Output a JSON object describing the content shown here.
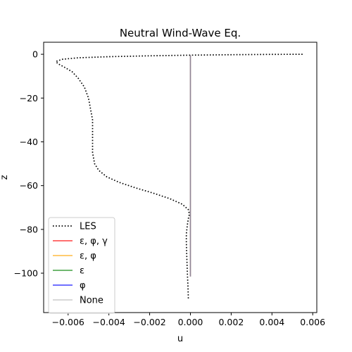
{
  "chart_data": {
    "type": "line",
    "title": "Neutral Wind-Wave Eq.",
    "xlabel": "u",
    "ylabel": "z",
    "xlim": [
      -0.0072,
      0.0062
    ],
    "ylim": [
      -118,
      5.5
    ],
    "xticks": [
      -0.006,
      -0.004,
      -0.002,
      0.0,
      0.002,
      0.004,
      0.006
    ],
    "xtick_labels": [
      "−0.006",
      "−0.004",
      "−0.002",
      "0.000",
      "0.002",
      "0.004",
      "0.006"
    ],
    "yticks": [
      0,
      -20,
      -40,
      -60,
      -80,
      -100
    ],
    "ytick_labels": [
      "0",
      "−20",
      "−40",
      "−60",
      "−80",
      "−100"
    ],
    "grid": false,
    "legend_position": "lower-left",
    "series": [
      {
        "name": "LES",
        "color": "#000000",
        "style": "dotted",
        "points": [
          [
            0.0055,
            0
          ],
          [
            0.004,
            -0.05
          ],
          [
            0.002,
            -0.2
          ],
          [
            0.0,
            -0.4
          ],
          [
            -0.002,
            -0.7
          ],
          [
            -0.004,
            -1.1
          ],
          [
            -0.0055,
            -1.6
          ],
          [
            -0.0063,
            -2.3
          ],
          [
            -0.0066,
            -3.3
          ],
          [
            -0.0065,
            -4.3
          ],
          [
            -0.0062,
            -5.8
          ],
          [
            -0.0058,
            -8
          ],
          [
            -0.0055,
            -11
          ],
          [
            -0.0052,
            -15
          ],
          [
            -0.005,
            -20
          ],
          [
            -0.0049,
            -25
          ],
          [
            -0.0048,
            -30
          ],
          [
            -0.0048,
            -35
          ],
          [
            -0.0048,
            -40
          ],
          [
            -0.0048,
            -45
          ],
          [
            -0.0047,
            -50
          ],
          [
            -0.0045,
            -53
          ],
          [
            -0.0041,
            -56
          ],
          [
            -0.0035,
            -58.5
          ],
          [
            -0.0027,
            -61
          ],
          [
            -0.0018,
            -63.5
          ],
          [
            -0.001,
            -66
          ],
          [
            -0.0004,
            -68.5
          ],
          [
            -0.0001,
            -71
          ],
          [
            -5e-05,
            -73
          ],
          [
            -0.0001,
            -75
          ],
          [
            -0.00015,
            -78
          ],
          [
            -0.0002,
            -82
          ],
          [
            -0.0002,
            -86
          ],
          [
            -0.00018,
            -92
          ],
          [
            -0.00015,
            -100
          ],
          [
            -0.00012,
            -106
          ],
          [
            -0.0001,
            -112
          ]
        ]
      },
      {
        "name": "ε, φ, γ",
        "color": "#ff0000",
        "style": "solid",
        "points": [
          [
            0.0,
            -0.5
          ],
          [
            0.0,
            -101.5
          ]
        ]
      },
      {
        "name": "ε, φ",
        "color": "#ffa500",
        "style": "solid",
        "points": [
          [
            0.0,
            -0.5
          ],
          [
            0.0,
            -101.5
          ]
        ]
      },
      {
        "name": "ε",
        "color": "#008000",
        "style": "solid",
        "points": [
          [
            0.0,
            -0.5
          ],
          [
            0.0,
            -101.5
          ]
        ]
      },
      {
        "name": "φ",
        "color": "#0000ff",
        "style": "solid",
        "points": [
          [
            0.0,
            -0.5
          ],
          [
            0.0,
            -101.5
          ]
        ]
      },
      {
        "name": "None",
        "color": "#bbbbbb",
        "style": "solid",
        "points": [
          [
            0.0,
            -0.5
          ],
          [
            0.0,
            -101.5
          ]
        ]
      }
    ]
  }
}
